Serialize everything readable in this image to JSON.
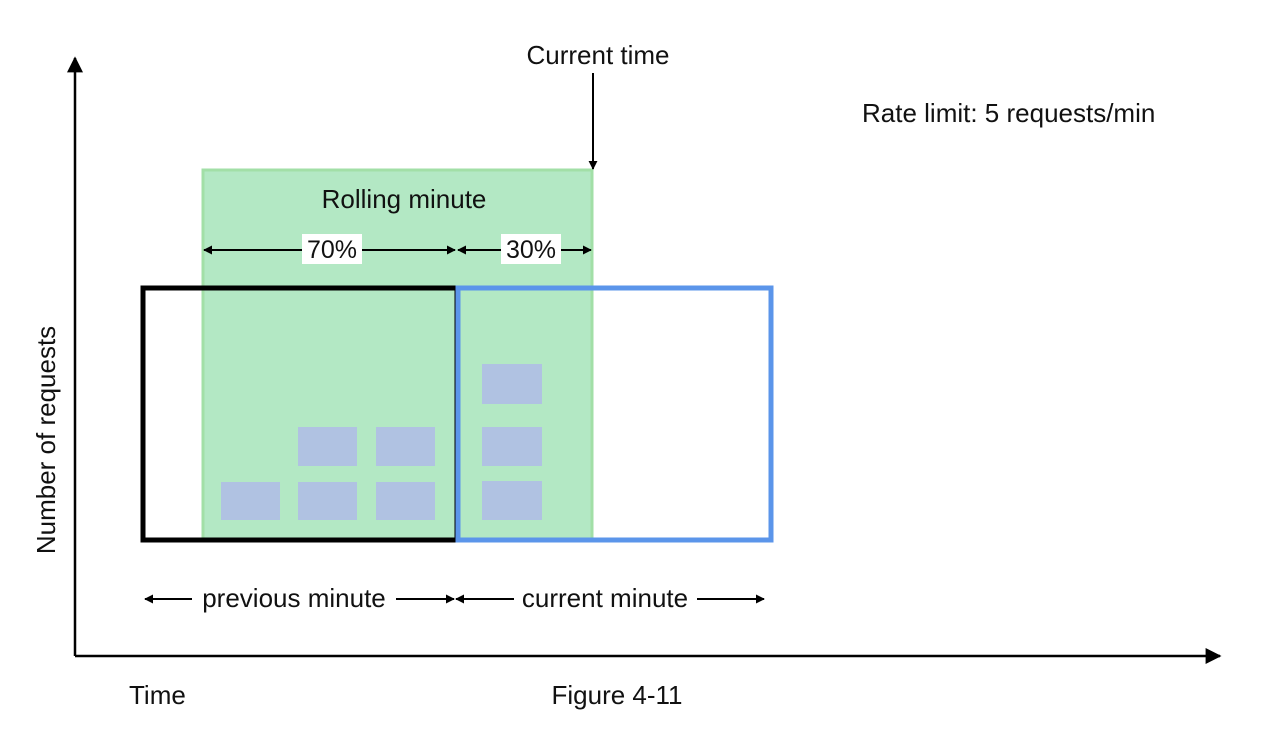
{
  "labels": {
    "current_time": "Current time",
    "rate_limit": "Rate limit: 5 requests/min",
    "rolling_minute": "Rolling minute",
    "pct_previous": "70%",
    "pct_current": "30%",
    "y_axis": "Number of requests",
    "previous_minute": "previous minute",
    "current_minute": "current minute",
    "x_axis": "Time",
    "figure_caption": "Figure 4-11"
  },
  "colors": {
    "axis": "#000000",
    "previous_window_border": "#000000",
    "current_window_border": "#5b95ea",
    "rolling_window_fill": "#b3e8c4",
    "rolling_window_border": "#a2dfa7",
    "request_block": "#b0c2e2"
  },
  "requests": {
    "previous_minute_count": 5,
    "current_minute_count": 3
  }
}
